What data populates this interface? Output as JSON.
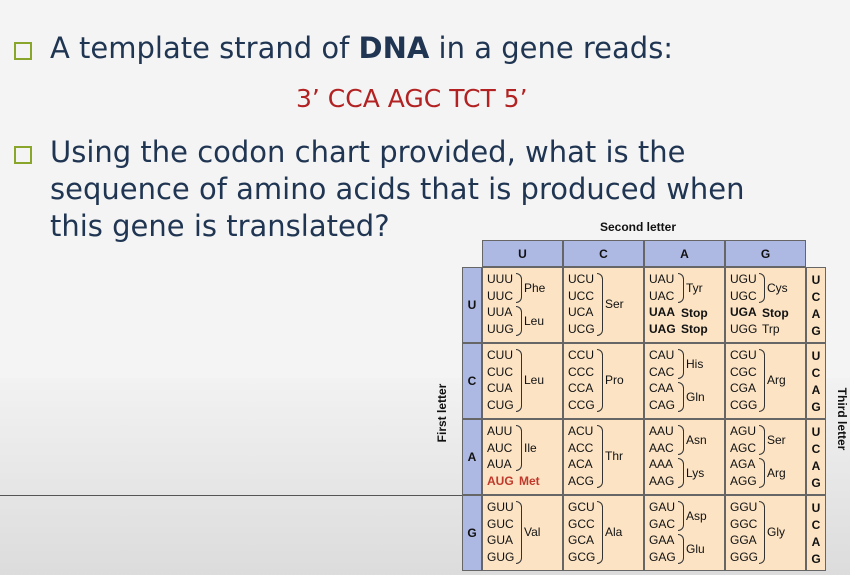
{
  "slide": {
    "bullet1": {
      "pre": "A template strand of ",
      "bold": "DNA",
      "post": " in a gene reads:"
    },
    "dna_sequence": "3’ CCA AGC TCT 5’",
    "bullet2": [
      "Using the codon chart provided, what is the",
      "sequence of amino acids that is produced when",
      "this gene is translated?"
    ]
  },
  "chart": {
    "second_letter_label": "Second letter",
    "first_letter_label": "First letter",
    "third_letter_label": "Third letter",
    "second_letters": [
      "U",
      "C",
      "A",
      "G"
    ],
    "first_letters": [
      "U",
      "C",
      "A",
      "G"
    ],
    "third_letters": [
      "U",
      "C",
      "A",
      "G"
    ],
    "rows": [
      [
        {
          "codons": [
            {
              "t": "UUU"
            },
            {
              "t": "UUC"
            },
            {
              "t": "UUA"
            },
            {
              "t": "UUG"
            }
          ],
          "groups": [
            {
              "from": 0,
              "to": 1,
              "aa": "Phe"
            },
            {
              "from": 2,
              "to": 3,
              "aa": "Leu"
            }
          ]
        },
        {
          "codons": [
            {
              "t": "UCU"
            },
            {
              "t": "UCC"
            },
            {
              "t": "UCA"
            },
            {
              "t": "UCG"
            }
          ],
          "groups": [
            {
              "from": 0,
              "to": 3,
              "aa": "Ser"
            }
          ]
        },
        {
          "codons": [
            {
              "t": "UAU"
            },
            {
              "t": "UAC"
            },
            {
              "t": "UAA",
              "bold": true
            },
            {
              "t": "UAG",
              "bold": true
            }
          ],
          "groups": [
            {
              "from": 0,
              "to": 1,
              "aa": "Tyr"
            },
            {
              "from": 2,
              "to": 2,
              "aa": "Stop",
              "bold": true,
              "nobrace": true
            },
            {
              "from": 3,
              "to": 3,
              "aa": "Stop",
              "bold": true,
              "nobrace": true
            }
          ]
        },
        {
          "codons": [
            {
              "t": "UGU"
            },
            {
              "t": "UGC"
            },
            {
              "t": "UGA",
              "bold": true
            },
            {
              "t": "UGG"
            }
          ],
          "groups": [
            {
              "from": 0,
              "to": 1,
              "aa": "Cys"
            },
            {
              "from": 2,
              "to": 2,
              "aa": "Stop",
              "bold": true,
              "nobrace": true
            },
            {
              "from": 3,
              "to": 3,
              "aa": "Trp",
              "nobrace": true
            }
          ]
        }
      ],
      [
        {
          "codons": [
            {
              "t": "CUU"
            },
            {
              "t": "CUC"
            },
            {
              "t": "CUA"
            },
            {
              "t": "CUG"
            }
          ],
          "groups": [
            {
              "from": 0,
              "to": 3,
              "aa": "Leu"
            }
          ]
        },
        {
          "codons": [
            {
              "t": "CCU"
            },
            {
              "t": "CCC"
            },
            {
              "t": "CCA"
            },
            {
              "t": "CCG"
            }
          ],
          "groups": [
            {
              "from": 0,
              "to": 3,
              "aa": "Pro"
            }
          ]
        },
        {
          "codons": [
            {
              "t": "CAU"
            },
            {
              "t": "CAC"
            },
            {
              "t": "CAA"
            },
            {
              "t": "CAG"
            }
          ],
          "groups": [
            {
              "from": 0,
              "to": 1,
              "aa": "His"
            },
            {
              "from": 2,
              "to": 3,
              "aa": "Gln"
            }
          ]
        },
        {
          "codons": [
            {
              "t": "CGU"
            },
            {
              "t": "CGC"
            },
            {
              "t": "CGA"
            },
            {
              "t": "CGG"
            }
          ],
          "groups": [
            {
              "from": 0,
              "to": 3,
              "aa": "Arg"
            }
          ]
        }
      ],
      [
        {
          "codons": [
            {
              "t": "AUU"
            },
            {
              "t": "AUC"
            },
            {
              "t": "AUA"
            },
            {
              "t": "AUG",
              "red": true
            }
          ],
          "groups": [
            {
              "from": 0,
              "to": 2,
              "aa": "Ile"
            },
            {
              "from": 3,
              "to": 3,
              "aa": "Met",
              "red": true,
              "nobrace": true
            }
          ]
        },
        {
          "codons": [
            {
              "t": "ACU"
            },
            {
              "t": "ACC"
            },
            {
              "t": "ACA"
            },
            {
              "t": "ACG"
            }
          ],
          "groups": [
            {
              "from": 0,
              "to": 3,
              "aa": "Thr"
            }
          ]
        },
        {
          "codons": [
            {
              "t": "AAU"
            },
            {
              "t": "AAC"
            },
            {
              "t": "AAA"
            },
            {
              "t": "AAG"
            }
          ],
          "groups": [
            {
              "from": 0,
              "to": 1,
              "aa": "Asn"
            },
            {
              "from": 2,
              "to": 3,
              "aa": "Lys"
            }
          ]
        },
        {
          "codons": [
            {
              "t": "AGU"
            },
            {
              "t": "AGC"
            },
            {
              "t": "AGA"
            },
            {
              "t": "AGG"
            }
          ],
          "groups": [
            {
              "from": 0,
              "to": 1,
              "aa": "Ser"
            },
            {
              "from": 2,
              "to": 3,
              "aa": "Arg"
            }
          ]
        }
      ],
      [
        {
          "codons": [
            {
              "t": "GUU"
            },
            {
              "t": "GUC"
            },
            {
              "t": "GUA"
            },
            {
              "t": "GUG"
            }
          ],
          "groups": [
            {
              "from": 0,
              "to": 3,
              "aa": "Val"
            }
          ]
        },
        {
          "codons": [
            {
              "t": "GCU"
            },
            {
              "t": "GCC"
            },
            {
              "t": "GCA"
            },
            {
              "t": "GCG"
            }
          ],
          "groups": [
            {
              "from": 0,
              "to": 3,
              "aa": "Ala"
            }
          ]
        },
        {
          "codons": [
            {
              "t": "GAU"
            },
            {
              "t": "GAC"
            },
            {
              "t": "GAA"
            },
            {
              "t": "GAG"
            }
          ],
          "groups": [
            {
              "from": 0,
              "to": 1,
              "aa": "Asp"
            },
            {
              "from": 2,
              "to": 3,
              "aa": "Glu"
            }
          ]
        },
        {
          "codons": [
            {
              "t": "GGU"
            },
            {
              "t": "GGC"
            },
            {
              "t": "GGA"
            },
            {
              "t": "GGG"
            }
          ],
          "groups": [
            {
              "from": 0,
              "to": 3,
              "aa": "Gly"
            }
          ]
        }
      ]
    ]
  }
}
